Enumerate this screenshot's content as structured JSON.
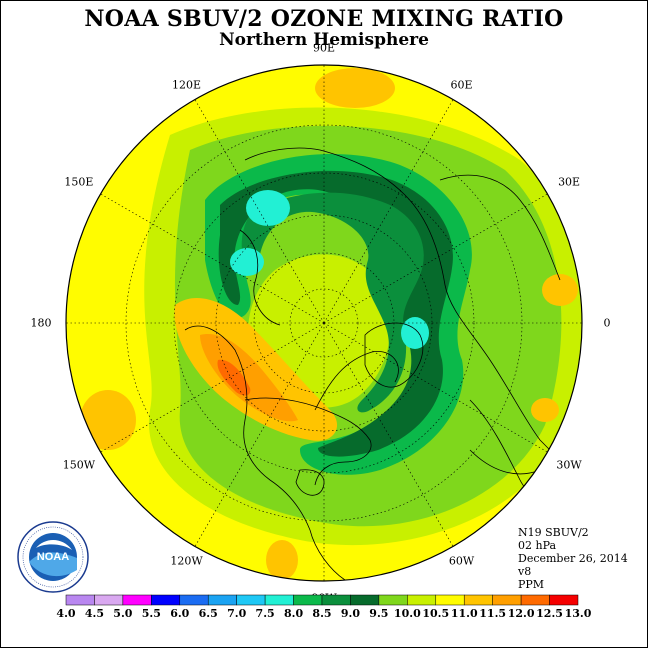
{
  "header": {
    "title": "NOAA SBUV/2 OZONE MIXING RATIO",
    "subtitle": "Northern Hemisphere"
  },
  "longitude_labels": [
    {
      "text": "90E",
      "angle": 90
    },
    {
      "text": "60E",
      "angle": 60
    },
    {
      "text": "30E",
      "angle": 30
    },
    {
      "text": "0",
      "angle": 0
    },
    {
      "text": "30W",
      "angle": -30
    },
    {
      "text": "60W",
      "angle": -60
    },
    {
      "text": "90W",
      "angle": -90
    },
    {
      "text": "120W",
      "angle": -120
    },
    {
      "text": "150W",
      "angle": -150
    },
    {
      "text": "180",
      "angle": 180
    },
    {
      "text": "150E",
      "angle": 150
    },
    {
      "text": "120E",
      "angle": 120
    }
  ],
  "info": {
    "satellite": "N19 SBUV/2",
    "level": "02 hPa",
    "date": "December 26, 2014",
    "version": "v8",
    "units": "PPM"
  },
  "logo": {
    "text": "NOAA",
    "ring_text": "NATIONAL OCEANIC AND ATMOSPHERIC ADMINISTRATION · U.S. DEPARTMENT OF COMMERCE"
  },
  "colorbar": {
    "ticks": [
      "4.0",
      "4.5",
      "5.0",
      "5.5",
      "6.0",
      "6.5",
      "7.0",
      "7.5",
      "8.0",
      "8.5",
      "9.0",
      "9.5",
      "10.0",
      "10.5",
      "11.0",
      "11.5",
      "12.0",
      "12.5",
      "13.0"
    ],
    "colors": [
      "#b987f0",
      "#d9a8f0",
      "#ff00ff",
      "#0000ff",
      "#1b6cf2",
      "#1ba3f2",
      "#1fc8f5",
      "#22f0d4",
      "#0bb94a",
      "#0b8f3c",
      "#066b2c",
      "#7fd71c",
      "#c8f000",
      "#fffc00",
      "#ffc400",
      "#ff9f00",
      "#ff6a00",
      "#f50000",
      "#8b5a2b"
    ]
  },
  "chart_data": {
    "type": "heatmap",
    "projection": "north polar stereographic",
    "variable": "ozone mixing ratio",
    "units": "PPM",
    "level": "02 hPa",
    "scale_min": 4.0,
    "scale_max": 13.0,
    "scale_step": 0.5,
    "regions": [
      {
        "level": "9.0-9.5",
        "location": "arc from eastern Siberia across northern Russia, Scandinavia, Atlantic to eastern North America"
      },
      {
        "level": "8.5-9.0",
        "location": "inner core of the arc over Siberia and North Atlantic"
      },
      {
        "level": "7.5-8.0",
        "location": "small pockets near 120E-150E at high latitude and near 0 over Scandinavia"
      },
      {
        "level": "11.0-12.0",
        "location": "over Alaska / northwestern Canada and Bering region"
      },
      {
        "level": "10.5-11.0",
        "location": "subtropical Pacific and near 150W"
      },
      {
        "level": "10.0-10.5",
        "location": "most of low latitudes"
      }
    ]
  }
}
